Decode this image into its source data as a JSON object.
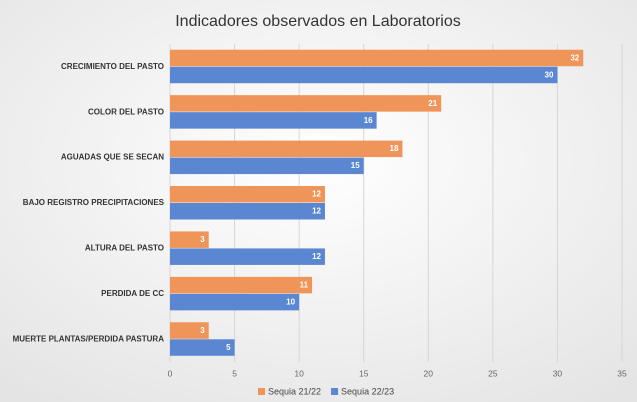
{
  "chart_data": {
    "type": "bar",
    "orientation": "horizontal",
    "title": "Indicadores observados en Laboratorios",
    "categories": [
      "CRECIMIENTO DEL PASTO",
      "COLOR DEL PASTO",
      "AGUADAS QUE SE SECAN",
      "BAJO REGISTRO PRECIPITACIONES",
      "ALTURA DEL PASTO",
      "PERDIDA DE CC",
      "MUERTE PLANTAS/PERDIDA PASTURA"
    ],
    "series": [
      {
        "name": "Sequia 21/22",
        "color": "#f0955a",
        "values": [
          32,
          21,
          18,
          12,
          3,
          11,
          3
        ]
      },
      {
        "name": "Sequia 22/23",
        "color": "#5b87d2",
        "values": [
          30,
          16,
          15,
          12,
          12,
          10,
          5
        ]
      }
    ],
    "xlim": [
      0,
      35
    ],
    "xticks": [
      0,
      5,
      10,
      15,
      20,
      25,
      30,
      35
    ],
    "grid": true,
    "legend": "bottom"
  }
}
